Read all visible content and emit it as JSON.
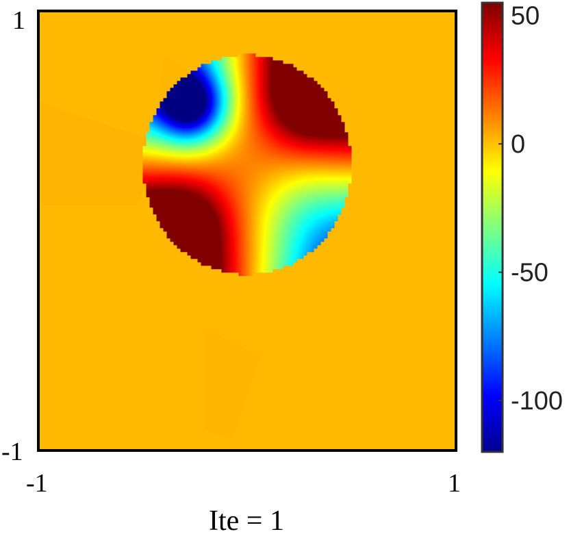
{
  "chart_data": [
    {
      "type": "heatmap",
      "title": "",
      "xlabel": "Ite = 1",
      "ylabel": "",
      "xlim": [
        -1,
        1
      ],
      "ylim": [
        -1,
        1
      ],
      "x_ticks": [
        "-1",
        "1"
      ],
      "y_ticks": [
        "1",
        "-1"
      ],
      "background_value": 12,
      "inclusion": {
        "shape": "disk",
        "center": [
          0.0,
          0.3
        ],
        "radius": 0.5,
        "value_min": -120,
        "value_max": 55,
        "pattern": "saddle: strongly negative upper-left, strongly positive upper-right and lower-left, mildly negative lower-right"
      },
      "colorbar": {
        "colormap": "jet",
        "range": [
          -120,
          55
        ],
        "ticks": [
          50,
          0,
          -50,
          -100
        ],
        "tick_labels": [
          "50",
          "0",
          "-50",
          "-100"
        ]
      },
      "grid": false,
      "legend": "none"
    }
  ],
  "colors": {
    "background_field": "#ffb900",
    "axes_border": "#000000",
    "colorbar_border": "#333333"
  }
}
